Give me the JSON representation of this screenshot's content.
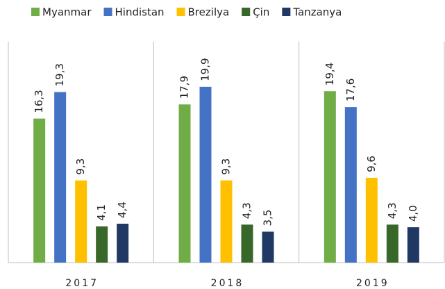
{
  "chart_data": {
    "type": "bar",
    "categories": [
      "2017",
      "2018",
      "2019"
    ],
    "series": [
      {
        "name": "Myanmar",
        "color": "#70ad47",
        "values": [
          16.3,
          17.9,
          19.4
        ],
        "value_labels": [
          "16,3",
          "17,9",
          "19,4"
        ]
      },
      {
        "name": "Hindistan",
        "color": "#4472c4",
        "values": [
          19.3,
          19.9,
          17.6
        ],
        "value_labels": [
          "19,3",
          "19,9",
          "17,6"
        ]
      },
      {
        "name": "Brezilya",
        "color": "#ffc000",
        "values": [
          9.3,
          9.3,
          9.6
        ],
        "value_labels": [
          "9,3",
          "9,3",
          "9,6"
        ]
      },
      {
        "name": "Çin",
        "color": "#38672a",
        "values": [
          4.1,
          4.3,
          4.3
        ],
        "value_labels": [
          "4,1",
          "4,3",
          "4,3"
        ]
      },
      {
        "name": "Tanzanya",
        "color": "#203864",
        "values": [
          4.4,
          3.5,
          4.0
        ],
        "value_labels": [
          "4,4",
          "3,5",
          "4,0"
        ]
      }
    ],
    "ylim": [
      0,
      25
    ]
  }
}
